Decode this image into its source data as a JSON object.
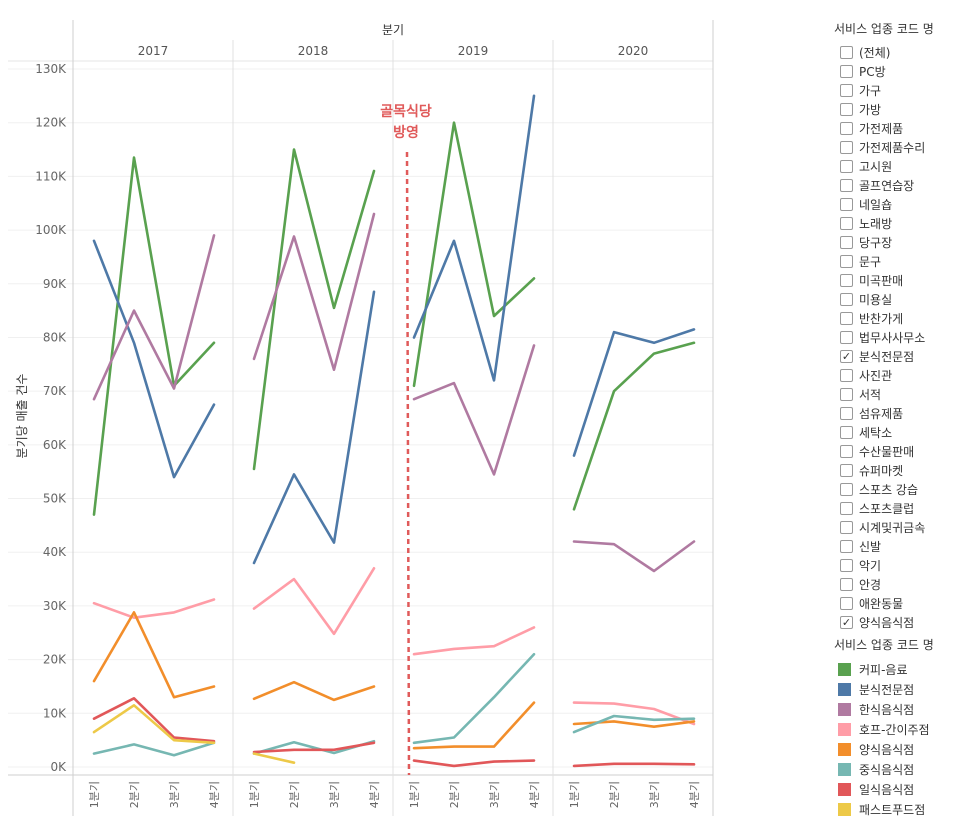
{
  "chart_data": {
    "type": "line",
    "column_header": "분기",
    "ylabel": "분기당 매출 건수",
    "yticks": [
      "0K",
      "10K",
      "20K",
      "30K",
      "40K",
      "50K",
      "60K",
      "70K",
      "80K",
      "90K",
      "100K",
      "110K",
      "120K",
      "130K"
    ],
    "ylim": [
      0,
      130000
    ],
    "panels": [
      "2017",
      "2018",
      "2019",
      "2020"
    ],
    "quarters": [
      "1분기",
      "2분기",
      "3분기",
      "4분기"
    ],
    "annotation": {
      "lines": [
        "골목식당",
        "방영"
      ],
      "position": "before 2019 1분기",
      "color": "#e05a5a"
    },
    "series": [
      {
        "name": "커피-음료",
        "color": "#59a14f",
        "values": [
          [
            47000,
            113500,
            71000,
            79000
          ],
          [
            55500,
            115000,
            85500,
            111000
          ],
          [
            71000,
            120000,
            84000,
            91000
          ],
          [
            48000,
            70000,
            77000,
            79000
          ]
        ]
      },
      {
        "name": "분식전문점",
        "color": "#4e79a7",
        "values": [
          [
            98000,
            79000,
            54000,
            67500
          ],
          [
            38000,
            54500,
            41800,
            88500
          ],
          [
            80000,
            98000,
            72000,
            125000
          ],
          [
            58000,
            81000,
            79000,
            81500
          ]
        ]
      },
      {
        "name": "한식음식점",
        "color": "#b07aa1",
        "values": [
          [
            68500,
            85000,
            70500,
            99000
          ],
          [
            76000,
            98800,
            74000,
            103000
          ],
          [
            68500,
            71500,
            54500,
            78500
          ],
          [
            42000,
            41500,
            36500,
            42000
          ]
        ]
      },
      {
        "name": "호프-간이주점",
        "color": "#ff9da7",
        "values": [
          [
            30500,
            27800,
            28800,
            31200
          ],
          [
            29500,
            35000,
            24800,
            37000
          ],
          [
            21000,
            22000,
            22500,
            26000
          ],
          [
            12000,
            11800,
            10800,
            8000
          ]
        ]
      },
      {
        "name": "양식음식점",
        "color": "#f28e2b",
        "values": [
          [
            16000,
            28800,
            13000,
            15000
          ],
          [
            12700,
            15800,
            12500,
            15000
          ],
          [
            3500,
            3800,
            3800,
            12000
          ],
          [
            8000,
            8500,
            7500,
            8500
          ]
        ]
      },
      {
        "name": "중식음식점",
        "color": "#76b7b2",
        "values": [
          [
            2500,
            4200,
            2200,
            4500
          ],
          [
            2500,
            4600,
            2600,
            4800
          ],
          [
            4500,
            5500,
            13000,
            21000
          ],
          [
            6500,
            9500,
            8800,
            9000
          ]
        ]
      },
      {
        "name": "일식음식점",
        "color": "#e15759",
        "values": [
          [
            9000,
            12800,
            5500,
            4800
          ],
          [
            2800,
            3200,
            3200,
            4500
          ],
          [
            1200,
            200,
            1000,
            1200
          ],
          [
            200,
            600,
            600,
            500
          ]
        ]
      },
      {
        "name": "패스트푸드점",
        "color": "#edc948",
        "values": [
          [
            6500,
            11500,
            5000,
            4500
          ],
          [
            2500,
            800,
            null,
            null
          ],
          [
            null,
            null,
            null,
            null
          ],
          [
            null,
            null,
            null,
            null
          ]
        ]
      }
    ]
  },
  "filter": {
    "title": "서비스 업종 코드 명",
    "items": [
      {
        "label": "(전체)",
        "checked": false
      },
      {
        "label": "PC방",
        "checked": false
      },
      {
        "label": "가구",
        "checked": false
      },
      {
        "label": "가방",
        "checked": false
      },
      {
        "label": "가전제품",
        "checked": false
      },
      {
        "label": "가전제품수리",
        "checked": false
      },
      {
        "label": "고시원",
        "checked": false
      },
      {
        "label": "골프연습장",
        "checked": false
      },
      {
        "label": "네일숍",
        "checked": false
      },
      {
        "label": "노래방",
        "checked": false
      },
      {
        "label": "당구장",
        "checked": false
      },
      {
        "label": "문구",
        "checked": false
      },
      {
        "label": "미곡판매",
        "checked": false
      },
      {
        "label": "미용실",
        "checked": false
      },
      {
        "label": "반찬가게",
        "checked": false
      },
      {
        "label": "법무사사무소",
        "checked": false
      },
      {
        "label": "분식전문점",
        "checked": true
      },
      {
        "label": "사진관",
        "checked": false
      },
      {
        "label": "서적",
        "checked": false
      },
      {
        "label": "섬유제품",
        "checked": false
      },
      {
        "label": "세탁소",
        "checked": false
      },
      {
        "label": "수산물판매",
        "checked": false
      },
      {
        "label": "슈퍼마켓",
        "checked": false
      },
      {
        "label": "스포츠 강습",
        "checked": false
      },
      {
        "label": "스포츠클럽",
        "checked": false
      },
      {
        "label": "시계및귀금속",
        "checked": false
      },
      {
        "label": "신발",
        "checked": false
      },
      {
        "label": "악기",
        "checked": false
      },
      {
        "label": "안경",
        "checked": false
      },
      {
        "label": "애완동물",
        "checked": false
      },
      {
        "label": "양식음식점",
        "checked": true
      }
    ]
  },
  "legend": {
    "title": "서비스 업종 코드 명"
  }
}
